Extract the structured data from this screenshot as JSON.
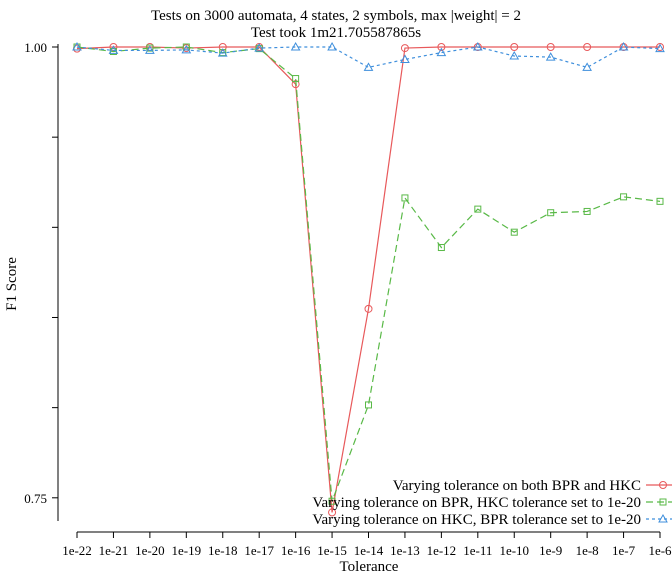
{
  "chart_data": {
    "type": "line",
    "title": "Tests on 3000 automata, 4 states, 2 symbols, max |weight| = 2",
    "subtitle": "Test took 1m21.705587865s",
    "xlabel": "Tolerance",
    "ylabel": "F1 Score",
    "categories": [
      "1e-22",
      "1e-21",
      "1e-20",
      "1e-19",
      "1e-18",
      "1e-17",
      "1e-16",
      "1e-15",
      "1e-14",
      "1e-13",
      "1e-12",
      "1e-11",
      "1e-10",
      "1e-9",
      "1e-8",
      "1e-7",
      "1e-6"
    ],
    "yticks": [
      {
        "value": 1.0,
        "label": "1.00"
      },
      {
        "value": 0.95,
        "label": ""
      },
      {
        "value": 0.9,
        "label": ""
      },
      {
        "value": 0.85,
        "label": ""
      },
      {
        "value": 0.8,
        "label": ""
      },
      {
        "value": 0.75,
        "label": "0.75"
      }
    ],
    "ylim": [
      0.7388,
      1.0
    ],
    "grid": false,
    "legend_position": "bottom-right",
    "series": [
      {
        "name": "Varying tolerance on both BPR and HKC",
        "color": "#e8595b",
        "dash": "solid",
        "marker": "circle",
        "values": [
          0.9991,
          1.0,
          1.0,
          0.9994,
          1.0,
          1.0,
          0.9794,
          0.7419,
          0.8548,
          0.9994,
          1.0,
          1.0,
          1.0,
          1.0,
          1.0,
          1.0,
          1.0
        ]
      },
      {
        "name": "Varying tolerance on BPR, HKC tolerance set to 1e-20",
        "color": "#59b947",
        "dash": "dashed",
        "marker": "square",
        "values": [
          1.0,
          0.9975,
          0.9994,
          1.0,
          0.9969,
          0.9991,
          0.9825,
          0.7481,
          0.8015,
          0.9163,
          0.8888,
          0.9101,
          0.8973,
          0.9081,
          0.9088,
          0.9169,
          0.9144
        ]
      },
      {
        "name": "Varying tolerance on HKC, BPR tolerance set to 1e-20",
        "color": "#3f8fdc",
        "dash": "dotted",
        "marker": "triangle",
        "values": [
          1.0,
          0.9981,
          0.9981,
          0.9984,
          0.9966,
          0.9994,
          1.0,
          1.0,
          0.9887,
          0.9931,
          0.9969,
          1.0,
          0.995,
          0.9944,
          0.9887,
          1.0,
          0.9991
        ]
      }
    ]
  }
}
